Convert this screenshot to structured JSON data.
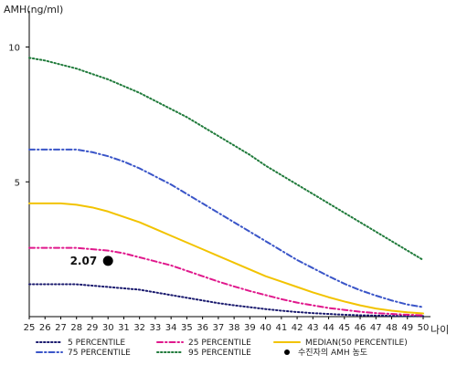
{
  "chart_data": {
    "type": "line",
    "title": "",
    "ylabel": "AMH(ng/ml)",
    "xlabel": "나이",
    "x": [
      25,
      26,
      27,
      28,
      29,
      30,
      31,
      32,
      33,
      34,
      35,
      36,
      37,
      38,
      39,
      40,
      41,
      42,
      43,
      44,
      45,
      46,
      47,
      48,
      49,
      50
    ],
    "x_ticks": [
      "25",
      "26",
      "27",
      "28",
      "29",
      "30",
      "31",
      "32",
      "33",
      "34",
      "35",
      "36",
      "37",
      "38",
      "39",
      "40",
      "41",
      "42",
      "43",
      "44",
      "45",
      "46",
      "47",
      "48",
      "49",
      "50"
    ],
    "y_ticks": [
      5,
      10
    ],
    "xlim": [
      25,
      50
    ],
    "ylim": [
      0,
      11
    ],
    "grid": false,
    "legend_position": "bottom",
    "series": [
      {
        "name": "5 PERCENTILE",
        "color": "#1a1a6e",
        "dash": "dotted",
        "values": [
          1.2,
          1.2,
          1.2,
          1.2,
          1.15,
          1.1,
          1.05,
          1.0,
          0.9,
          0.8,
          0.7,
          0.6,
          0.5,
          0.42,
          0.35,
          0.28,
          0.22,
          0.17,
          0.13,
          0.1,
          0.07,
          0.05,
          0.04,
          0.03,
          0.02,
          0.02
        ]
      },
      {
        "name": "25 PERCENTILE",
        "color": "#e0188c",
        "dash": "dash-dot",
        "values": [
          2.55,
          2.55,
          2.55,
          2.55,
          2.5,
          2.45,
          2.35,
          2.2,
          2.05,
          1.9,
          1.7,
          1.5,
          1.3,
          1.12,
          0.95,
          0.8,
          0.65,
          0.52,
          0.42,
          0.32,
          0.25,
          0.18,
          0.13,
          0.1,
          0.07,
          0.05
        ]
      },
      {
        "name": "MEDIAN(50 PERCENTILE)",
        "color": "#f2c300",
        "dash": "solid",
        "values": [
          4.2,
          4.2,
          4.2,
          4.15,
          4.05,
          3.9,
          3.7,
          3.5,
          3.25,
          3.0,
          2.75,
          2.5,
          2.25,
          2.0,
          1.75,
          1.5,
          1.3,
          1.1,
          0.9,
          0.72,
          0.56,
          0.42,
          0.3,
          0.22,
          0.16,
          0.12
        ]
      },
      {
        "name": "75 PERCENTILE",
        "color": "#3a55c8",
        "dash": "dash-dot",
        "values": [
          6.2,
          6.2,
          6.2,
          6.2,
          6.1,
          5.95,
          5.75,
          5.5,
          5.2,
          4.9,
          4.55,
          4.2,
          3.85,
          3.5,
          3.15,
          2.8,
          2.45,
          2.1,
          1.8,
          1.5,
          1.22,
          0.98,
          0.78,
          0.6,
          0.45,
          0.35
        ]
      },
      {
        "name": "95 PERCENTILE",
        "color": "#1f7a3a",
        "dash": "dotted",
        "values": [
          9.6,
          9.5,
          9.35,
          9.2,
          9.0,
          8.8,
          8.55,
          8.3,
          8.0,
          7.7,
          7.4,
          7.05,
          6.7,
          6.35,
          6.0,
          5.6,
          5.25,
          4.9,
          4.55,
          4.2,
          3.85,
          3.5,
          3.15,
          2.8,
          2.45,
          2.1
        ]
      }
    ],
    "patient": {
      "label": "수진자의 AMH 농도",
      "x": 30,
      "y": 2.07,
      "value_label": "2.07"
    }
  }
}
